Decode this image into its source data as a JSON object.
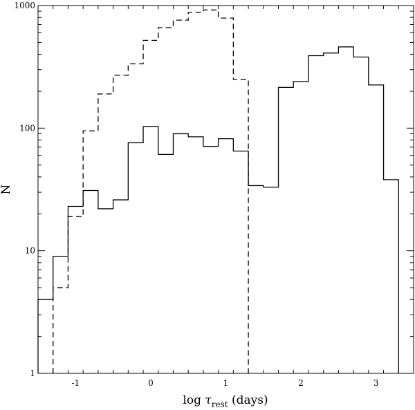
{
  "chart_data": {
    "type": "histogram",
    "xlabel": "log τrest (days)",
    "xlabel_parts": {
      "prefix": "log ",
      "symbol": "τ",
      "subscript": "rest",
      "suffix": " (days)"
    },
    "ylabel": "N",
    "y_scale": "log",
    "xlim": [
      -1.5,
      3.5
    ],
    "ylim": [
      1,
      1000
    ],
    "x_ticks": [
      {
        "value": -1,
        "label": "-1"
      },
      {
        "value": 0,
        "label": "0"
      },
      {
        "value": 1,
        "label": "1"
      },
      {
        "value": 2,
        "label": "2"
      },
      {
        "value": 3,
        "label": "3"
      }
    ],
    "y_ticks": [
      {
        "value": 1,
        "label": "1"
      },
      {
        "value": 10,
        "label": "10"
      },
      {
        "value": 100,
        "label": "100"
      },
      {
        "value": 1000,
        "label": "1000"
      }
    ],
    "bin_width": 0.2,
    "series": [
      {
        "style": "solid",
        "bins": [
          {
            "x0": -1.5,
            "x1": -1.3,
            "y": 4
          },
          {
            "x0": -1.3,
            "x1": -1.1,
            "y": 9
          },
          {
            "x0": -1.1,
            "x1": -0.9,
            "y": 23
          },
          {
            "x0": -0.9,
            "x1": -0.7,
            "y": 31
          },
          {
            "x0": -0.7,
            "x1": -0.5,
            "y": 22
          },
          {
            "x0": -0.5,
            "x1": -0.3,
            "y": 26
          },
          {
            "x0": -0.3,
            "x1": -0.1,
            "y": 76
          },
          {
            "x0": -0.1,
            "x1": 0.1,
            "y": 103
          },
          {
            "x0": 0.1,
            "x1": 0.3,
            "y": 61
          },
          {
            "x0": 0.3,
            "x1": 0.5,
            "y": 90
          },
          {
            "x0": 0.5,
            "x1": 0.7,
            "y": 85
          },
          {
            "x0": 0.7,
            "x1": 0.9,
            "y": 71
          },
          {
            "x0": 0.9,
            "x1": 1.1,
            "y": 82
          },
          {
            "x0": 1.1,
            "x1": 1.3,
            "y": 65
          },
          {
            "x0": 1.3,
            "x1": 1.5,
            "y": 34
          },
          {
            "x0": 1.5,
            "x1": 1.7,
            "y": 33
          },
          {
            "x0": 1.7,
            "x1": 1.9,
            "y": 215
          },
          {
            "x0": 1.9,
            "x1": 2.1,
            "y": 240
          },
          {
            "x0": 2.1,
            "x1": 2.3,
            "y": 390
          },
          {
            "x0": 2.3,
            "x1": 2.5,
            "y": 410
          },
          {
            "x0": 2.5,
            "x1": 2.7,
            "y": 460
          },
          {
            "x0": 2.7,
            "x1": 2.9,
            "y": 380
          },
          {
            "x0": 2.9,
            "x1": 3.1,
            "y": 225
          },
          {
            "x0": 3.1,
            "x1": 3.3,
            "y": 38
          }
        ]
      },
      {
        "style": "dashed",
        "bins": [
          {
            "x0": -1.3,
            "x1": -1.1,
            "y": 5
          },
          {
            "x0": -1.1,
            "x1": -0.9,
            "y": 19
          },
          {
            "x0": -0.9,
            "x1": -0.7,
            "y": 95
          },
          {
            "x0": -0.7,
            "x1": -0.5,
            "y": 190
          },
          {
            "x0": -0.5,
            "x1": -0.3,
            "y": 270
          },
          {
            "x0": -0.3,
            "x1": -0.1,
            "y": 335
          },
          {
            "x0": -0.1,
            "x1": 0.1,
            "y": 520
          },
          {
            "x0": 0.1,
            "x1": 0.3,
            "y": 660
          },
          {
            "x0": 0.3,
            "x1": 0.5,
            "y": 760
          },
          {
            "x0": 0.5,
            "x1": 0.7,
            "y": 880
          },
          {
            "x0": 0.7,
            "x1": 0.9,
            "y": 920
          },
          {
            "x0": 0.9,
            "x1": 1.1,
            "y": 790
          },
          {
            "x0": 1.1,
            "x1": 1.3,
            "y": 250
          }
        ]
      }
    ]
  }
}
